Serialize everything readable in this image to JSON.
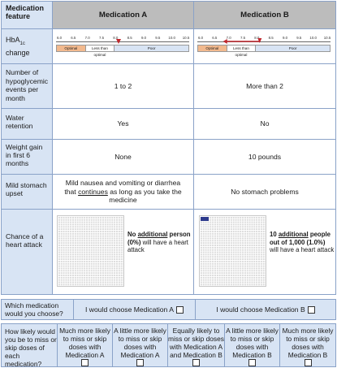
{
  "header": {
    "feature_label": "Medication feature",
    "med_a": "Medication A",
    "med_b": "Medication B"
  },
  "rows": {
    "hba1c": {
      "label_pre": "HbA",
      "label_sub": "1c",
      "label_post": " change",
      "scale_ticks": [
        "6.0",
        "6.5",
        "7.0",
        "7.5",
        "8.0",
        "8.5",
        "9.0",
        "9.5",
        "10.0",
        "10.5"
      ],
      "zones": {
        "optimal": "Optimal",
        "less": "Less than optimal",
        "poor": "Poor"
      },
      "zone_colors": {
        "optimal": "#f2b98e",
        "less": "#ffffff",
        "poor": "#d8e4f4"
      },
      "marker_color": "#c0272d",
      "a_marker_value": 8.1,
      "b_arrow_from": 8.1,
      "b_arrow_to": 6.8
    },
    "hypo": {
      "label": "Number of hypoglycemic events per month",
      "a": "1 to 2",
      "b": "More than 2"
    },
    "water": {
      "label": "Water retention",
      "a": "Yes",
      "b": "No"
    },
    "weight": {
      "label": "Weight gain in first 6 months",
      "a": "None",
      "b": "10 pounds"
    },
    "stomach": {
      "label": "Mild stomach upset",
      "a_1": "Mild nausea and vomiting or diarrhea that ",
      "a_u": "continues",
      "a_2": " as long as you take the medicine",
      "b": "No stomach problems"
    },
    "heart": {
      "label": "Chance of a heart attack",
      "a_1": "No ",
      "a_u": "additional",
      "a_2": " person (0%)",
      "a_3": " will have a heart attack",
      "b_1": "10 ",
      "b_u": "additional",
      "b_2": " people out of 1,000 (1.0%)",
      "b_3": " will have a heart attack",
      "highlight_color": "#2d3a8c",
      "a_highlight_fraction": 0,
      "b_highlight_fraction": 0.01
    }
  },
  "choice": {
    "question": "Which medication would you choose?",
    "opt_a": "I would choose Medication A",
    "opt_b": "I would choose Medication B"
  },
  "likely": {
    "question": "How likely would you be to miss or skip doses of each medication?",
    "options": [
      "Much more likely to miss or skip doses with Medication A",
      "A little more likely to miss or skip doses with Medication A",
      "Equally likely to miss or skip doses with Medication A and Medication B",
      "A little more likely to miss or skip doses with Medication B",
      "Much more likely to miss or skip doses with Medication B"
    ]
  }
}
